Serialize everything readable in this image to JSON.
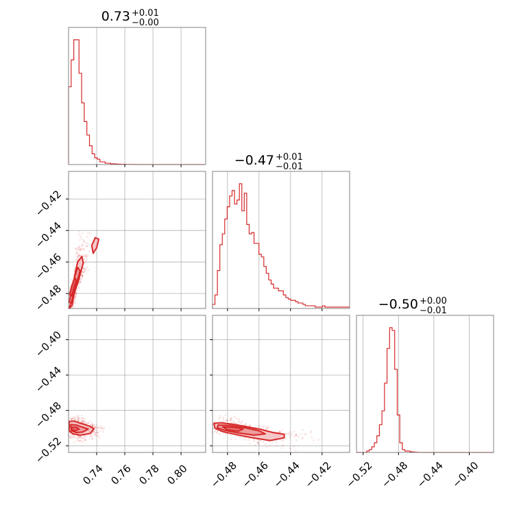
{
  "chart_data": {
    "type": "corner",
    "accent_color": "#d62728",
    "grid": true,
    "parameters": [
      {
        "range": [
          0.72,
          0.8175
        ],
        "ticks": [
          "0.74",
          "0.76",
          "0.78",
          "0.80"
        ],
        "tick_values": [
          0.74,
          0.76,
          0.78,
          0.8
        ],
        "title": {
          "main": "0.73",
          "upper": "+0.01",
          "lower": "−0.00"
        }
      },
      {
        "range": [
          -0.4895,
          -0.4025
        ],
        "ticks": [
          "−0.48",
          "−0.46",
          "−0.44",
          "−0.42"
        ],
        "tick_values": [
          -0.48,
          -0.46,
          -0.44,
          -0.42
        ],
        "title": {
          "main": "−0.47",
          "upper": "+0.01",
          "lower": "−0.01"
        }
      },
      {
        "range": [
          -0.5275,
          -0.3725
        ],
        "ticks": [
          "−0.52",
          "−0.48",
          "−0.44",
          "−0.40"
        ],
        "tick_values": [
          -0.52,
          -0.48,
          -0.44,
          -0.4
        ],
        "title": {
          "main": "−0.50",
          "upper": "+0.00",
          "lower": "−0.01"
        }
      }
    ],
    "histograms": [
      {
        "param": 0,
        "bin_start": 0.72,
        "bin_width": 0.00186,
        "counts": [
          0.58,
          0.78,
          0.93,
          0.93,
          0.68,
          0.46,
          0.32,
          0.22,
          0.14,
          0.08,
          0.05,
          0.04,
          0.02,
          0.02,
          0.01,
          0.01,
          0.005,
          0.005,
          0.004,
          0.003,
          0.002,
          0.002,
          0.001,
          0.001,
          0.001,
          0.0,
          0.0,
          0.0,
          0,
          0,
          0,
          0,
          0,
          0,
          0,
          0,
          0,
          0,
          0,
          0,
          0,
          0,
          0,
          0,
          0,
          0,
          0,
          0,
          0,
          0,
          0,
          0
        ]
      },
      {
        "param": 1,
        "bin_start": -0.4895,
        "bin_width": 0.00155,
        "counts": [
          0.03,
          0.1,
          0.28,
          0.47,
          0.55,
          0.66,
          0.75,
          0.83,
          0.87,
          0.77,
          0.8,
          0.92,
          0.72,
          0.85,
          0.62,
          0.55,
          0.56,
          0.48,
          0.48,
          0.4,
          0.38,
          0.31,
          0.26,
          0.21,
          0.18,
          0.15,
          0.15,
          0.13,
          0.13,
          0.1,
          0.08,
          0.07,
          0.06,
          0.06,
          0.05,
          0.04,
          0.04,
          0.03,
          0.02,
          0.02,
          0.02,
          0.02,
          0.01,
          0.01,
          0.01,
          0.02,
          0.01,
          0.01,
          0.01,
          0.01,
          0.01,
          0.01,
          0.01,
          0.01,
          0.01,
          0.01
        ]
      },
      {
        "param": 2,
        "bin_start": -0.5275,
        "bin_width": 0.00288,
        "counts": [
          0,
          0,
          0,
          0,
          0.01,
          0.02,
          0.04,
          0.07,
          0.12,
          0.2,
          0.3,
          0.5,
          0.75,
          0.9,
          0.88,
          0.6,
          0.27,
          0.07,
          0.02,
          0.01,
          0.01,
          0.005,
          0.003,
          0.002,
          0.001,
          0,
          0,
          0,
          0,
          0,
          0,
          0,
          0,
          0,
          0,
          0,
          0,
          0,
          0,
          0,
          0,
          0,
          0,
          0,
          0,
          0,
          0,
          0,
          0,
          0,
          0,
          0,
          0,
          0
        ]
      }
    ],
    "joint": [
      {
        "x_param": 0,
        "y_param": 1,
        "contours": [
          [
            [
              0.7205,
              -0.4895
            ],
            [
              0.7215,
              -0.486
            ],
            [
              0.7235,
              -0.4775
            ],
            [
              0.7245,
              -0.468
            ],
            [
              0.7265,
              -0.46
            ],
            [
              0.7295,
              -0.4565
            ],
            [
              0.7305,
              -0.4605
            ],
            [
              0.7275,
              -0.4705
            ],
            [
              0.724,
              -0.48
            ],
            [
              0.7225,
              -0.4875
            ]
          ],
          [
            [
              0.7205,
              -0.4855
            ],
            [
              0.7225,
              -0.476
            ],
            [
              0.7245,
              -0.469
            ],
            [
              0.7265,
              -0.4635
            ],
            [
              0.7282,
              -0.4655
            ],
            [
              0.7262,
              -0.472
            ],
            [
              0.7238,
              -0.479
            ],
            [
              0.722,
              -0.486
            ]
          ],
          [
            [
              0.7208,
              -0.4805
            ],
            [
              0.7225,
              -0.4745
            ],
            [
              0.7245,
              -0.47
            ],
            [
              0.7255,
              -0.4715
            ],
            [
              0.724,
              -0.476
            ],
            [
              0.7222,
              -0.4815
            ]
          ],
          [
            [
              0.7365,
              -0.4495
            ],
            [
              0.739,
              -0.4445
            ],
            [
              0.7415,
              -0.4455
            ],
            [
              0.74,
              -0.451
            ],
            [
              0.7375,
              -0.4545
            ]
          ]
        ]
      },
      {
        "x_param": 0,
        "y_param": 2,
        "contours": [
          [
            [
              0.7205,
              -0.4925
            ],
            [
              0.724,
              -0.492
            ],
            [
              0.7285,
              -0.4945
            ],
            [
              0.7345,
              -0.4975
            ],
            [
              0.738,
              -0.5005
            ],
            [
              0.7355,
              -0.506
            ],
            [
              0.7285,
              -0.508
            ],
            [
              0.723,
              -0.5065
            ],
            [
              0.7205,
              -0.503
            ]
          ],
          [
            [
              0.7215,
              -0.496
            ],
            [
              0.7255,
              -0.4965
            ],
            [
              0.73,
              -0.499
            ],
            [
              0.734,
              -0.501
            ],
            [
              0.73,
              -0.5045
            ],
            [
              0.7255,
              -0.505
            ],
            [
              0.722,
              -0.503
            ]
          ],
          [
            [
              0.7222,
              -0.499
            ],
            [
              0.7255,
              -0.499
            ],
            [
              0.7275,
              -0.501
            ],
            [
              0.725,
              -0.503
            ],
            [
              0.7225,
              -0.502
            ]
          ]
        ]
      },
      {
        "x_param": 1,
        "y_param": 2,
        "contours": [
          [
            [
              -0.4885,
              -0.4945
            ],
            [
              -0.484,
              -0.494
            ],
            [
              -0.477,
              -0.4955
            ],
            [
              -0.469,
              -0.498
            ],
            [
              -0.46,
              -0.501
            ],
            [
              -0.451,
              -0.505
            ],
            [
              -0.444,
              -0.507
            ],
            [
              -0.444,
              -0.511
            ],
            [
              -0.453,
              -0.514
            ],
            [
              -0.464,
              -0.511
            ],
            [
              -0.474,
              -0.5075
            ],
            [
              -0.483,
              -0.504
            ],
            [
              -0.488,
              -0.5
            ]
          ],
          [
            [
              -0.486,
              -0.4965
            ],
            [
              -0.478,
              -0.497
            ],
            [
              -0.469,
              -0.4995
            ],
            [
              -0.46,
              -0.503
            ],
            [
              -0.456,
              -0.5065
            ],
            [
              -0.463,
              -0.508
            ],
            [
              -0.473,
              -0.5055
            ],
            [
              -0.482,
              -0.5025
            ],
            [
              -0.4865,
              -0.4995
            ]
          ],
          [
            [
              -0.483,
              -0.4985
            ],
            [
              -0.476,
              -0.499
            ],
            [
              -0.47,
              -0.501
            ],
            [
              -0.473,
              -0.5035
            ],
            [
              -0.48,
              -0.502
            ]
          ]
        ]
      }
    ]
  }
}
